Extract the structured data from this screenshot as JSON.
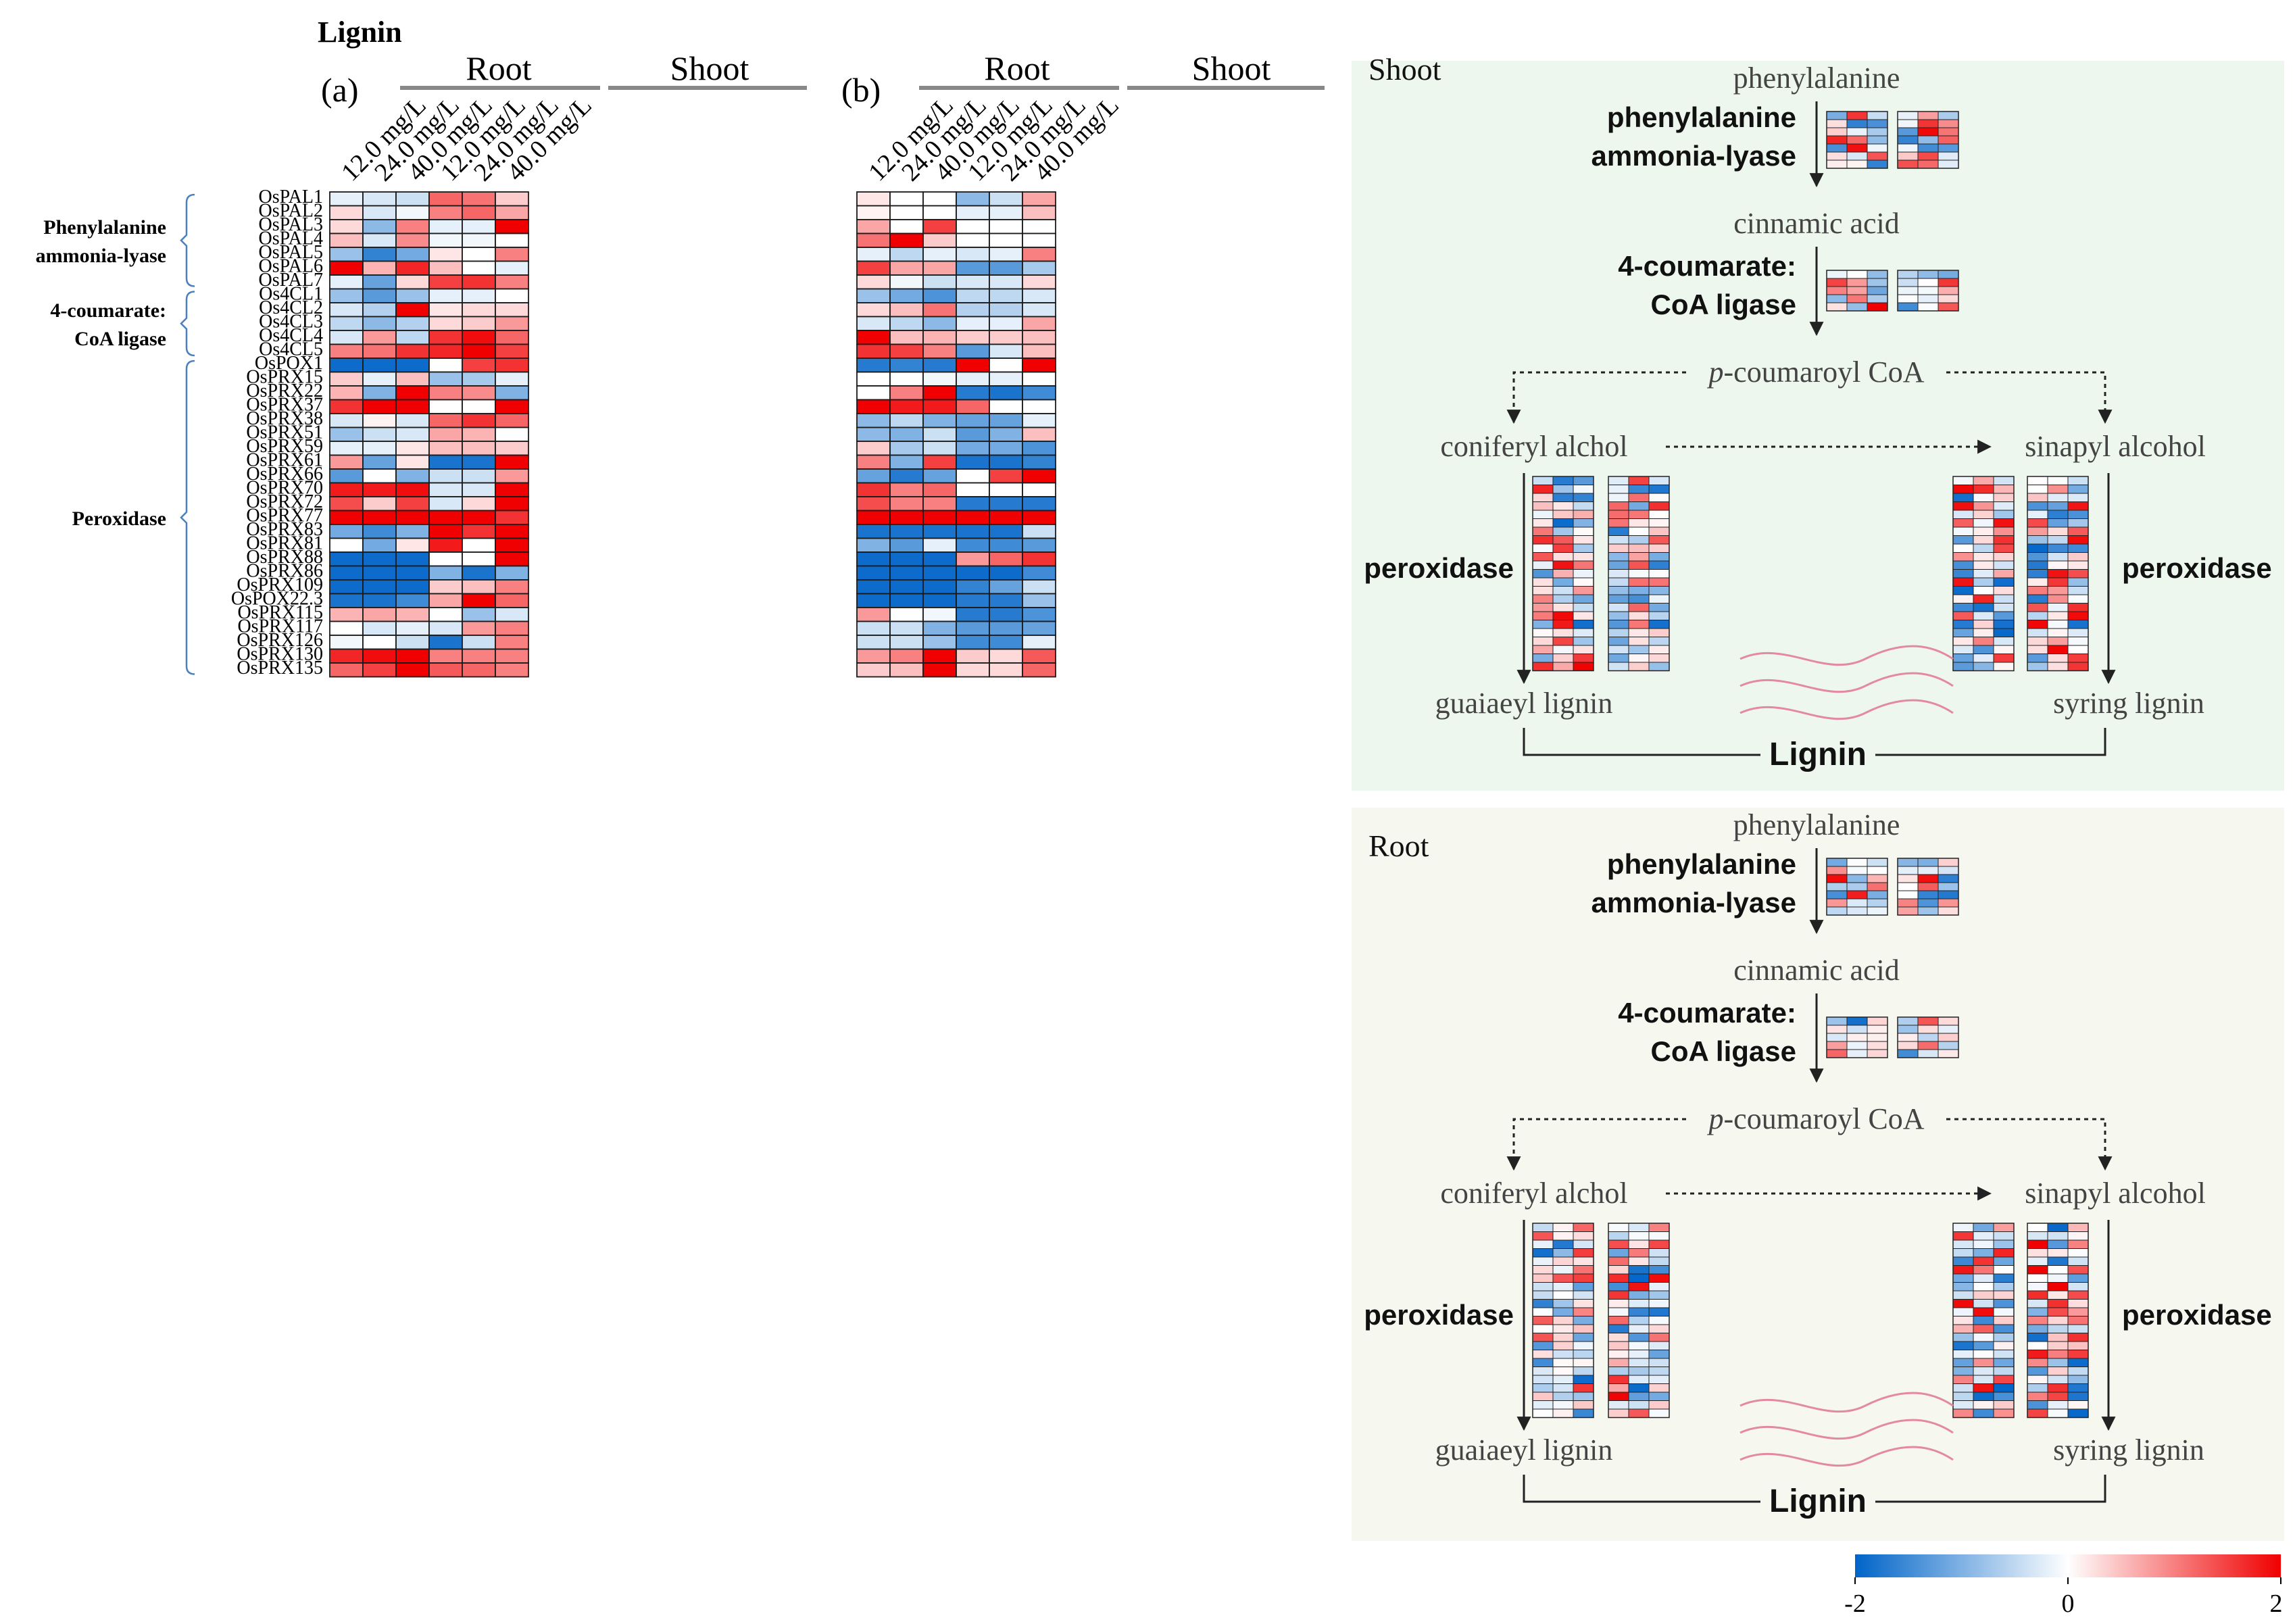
{
  "title": "Lignin",
  "colorbar": {
    "min_label": "-2",
    "mid_label": "0",
    "max_label": "2",
    "low_color": "#0064c8",
    "mid_color": "#ffffff",
    "high_color": "#f00000"
  },
  "chart_data": [
    {
      "type": "heatmap",
      "panel": "(a)",
      "groups": [
        "Root",
        "Shoot"
      ],
      "columns": [
        "12.0 mg/L",
        "24.0 mg/L",
        "40.0 mg/L",
        "12.0 mg/L",
        "24.0 mg/L",
        "40.0 mg/L"
      ],
      "rows": [
        "OsPAL1",
        "OsPAL2",
        "OsPAL3",
        "OsPAL4",
        "OsPAL5",
        "OsPAL6",
        "OsPAL7",
        "Os4CL1",
        "Os4CL2",
        "Os4CL3",
        "Os4CL4",
        "Os4CL5",
        "OsPOX1",
        "OsPRX15",
        "OsPRX22",
        "OsPRX37",
        "OsPRX38",
        "OsPRX51",
        "OsPRX59",
        "OsPRX61",
        "OsPRX66",
        "OsPRX70",
        "OsPRX72",
        "OsPRX77",
        "OsPRX83",
        "OsPRX81",
        "OsPRX88",
        "OsPRX86",
        "OsPRX109",
        "OsPOX22.3",
        "OsPRX115",
        "OsPRX117",
        "OsPRX126",
        "OsPRX130",
        "OsPRX135"
      ],
      "row_groups": [
        {
          "label": [
            "Phenylalanine",
            "ammonia-lyase"
          ],
          "from": 0,
          "to": 6
        },
        {
          "label": [
            "4-coumarate:",
            "CoA ligase"
          ],
          "from": 7,
          "to": 11
        },
        {
          "label": [
            "Peroxidase"
          ],
          "from": 12,
          "to": 34
        }
      ],
      "values": [
        [
          -0.2,
          -0.3,
          -0.4,
          1.2,
          1.1,
          0.4
        ],
        [
          0.3,
          -0.3,
          -0.1,
          1.0,
          1.2,
          0.7
        ],
        [
          0.3,
          -0.9,
          1.0,
          -0.2,
          -0.2,
          2.0
        ],
        [
          0.5,
          -0.3,
          0.9,
          -0.1,
          -0.1,
          0.0
        ],
        [
          -0.8,
          -1.6,
          -1.1,
          0.2,
          0.0,
          1.0
        ],
        [
          2.0,
          0.6,
          1.7,
          0.5,
          0.0,
          -0.2
        ],
        [
          -0.2,
          -1.2,
          0.3,
          1.5,
          1.6,
          1.0
        ],
        [
          -0.8,
          -1.3,
          -0.8,
          -0.2,
          -0.2,
          0.0
        ],
        [
          -0.3,
          -0.6,
          2.0,
          0.2,
          0.3,
          0.3
        ],
        [
          -0.5,
          -0.9,
          -0.6,
          0.3,
          0.4,
          0.8
        ],
        [
          -0.3,
          0.8,
          -0.5,
          1.6,
          1.9,
          1.2
        ],
        [
          1.0,
          1.1,
          1.6,
          1.7,
          2.0,
          1.5
        ],
        [
          -1.9,
          -1.9,
          -1.9,
          0.0,
          1.5,
          1.6
        ],
        [
          0.4,
          -0.2,
          0.5,
          -0.8,
          -0.7,
          -0.2
        ],
        [
          0.6,
          -1.0,
          2.0,
          1.0,
          0.9,
          -1.0
        ],
        [
          1.6,
          2.0,
          2.0,
          0.0,
          0.0,
          2.0
        ],
        [
          -0.3,
          0.1,
          -0.3,
          1.2,
          1.6,
          1.2
        ],
        [
          -0.8,
          -0.4,
          -0.3,
          0.7,
          0.6,
          0.0
        ],
        [
          -0.2,
          -0.2,
          0.2,
          0.5,
          0.5,
          0.4
        ],
        [
          0.8,
          -1.2,
          0.2,
          -1.8,
          -1.8,
          2.0
        ],
        [
          -1.3,
          0.0,
          -1.0,
          -0.4,
          -0.4,
          0.8
        ],
        [
          1.8,
          1.8,
          1.9,
          -0.3,
          -0.3,
          2.0
        ],
        [
          1.4,
          0.4,
          1.5,
          -0.3,
          0.3,
          2.0
        ],
        [
          2.0,
          2.0,
          2.0,
          2.0,
          2.0,
          1.6
        ],
        [
          -1.1,
          -1.5,
          -1.0,
          2.0,
          1.6,
          2.0
        ],
        [
          0.0,
          -1.1,
          0.2,
          1.8,
          0.0,
          2.0
        ],
        [
          -1.9,
          -1.9,
          -1.9,
          0.0,
          0.0,
          2.0
        ],
        [
          -1.9,
          -1.9,
          -1.9,
          -1.0,
          -1.8,
          -1.0
        ],
        [
          -1.9,
          -1.9,
          -1.9,
          0.4,
          0.5,
          1.0
        ],
        [
          -1.8,
          -1.8,
          -1.5,
          0.7,
          2.0,
          1.2
        ],
        [
          0.6,
          0.7,
          0.6,
          0.0,
          -0.8,
          -0.3
        ],
        [
          0.0,
          -0.3,
          -0.2,
          -0.3,
          0.8,
          1.0
        ],
        [
          -0.1,
          0.0,
          -0.4,
          -1.8,
          -0.4,
          1.0
        ],
        [
          1.7,
          1.9,
          2.0,
          1.0,
          1.0,
          1.0
        ],
        [
          1.2,
          1.5,
          2.0,
          1.3,
          1.2,
          1.0
        ]
      ]
    },
    {
      "type": "heatmap",
      "panel": "(b)",
      "groups": [
        "Root",
        "Shoot"
      ],
      "columns": [
        "12.0 mg/L",
        "24.0 mg/L",
        "40.0 mg/L",
        "12.0 mg/L",
        "24.0 mg/L",
        "40.0 mg/L"
      ],
      "rows": [
        "OsPAL1",
        "OsPAL2",
        "OsPAL3",
        "OsPAL4",
        "OsPAL5",
        "OsPAL6",
        "OsPAL7",
        "Os4CL1",
        "Os4CL2",
        "Os4CL3",
        "Os4CL4",
        "Os4CL5",
        "OsPOX1",
        "OsPRX15",
        "OsPRX22",
        "OsPRX37",
        "OsPRX38",
        "OsPRX51",
        "OsPRX59",
        "OsPRX61",
        "OsPRX66",
        "OsPRX70",
        "OsPRX72",
        "OsPRX77",
        "OsPRX83",
        "OsPRX81",
        "OsPRX88",
        "OsPRX86",
        "OsPRX109",
        "OsPOX22.3",
        "OsPRX115",
        "OsPRX117",
        "OsPRX126",
        "OsPRX130",
        "OsPRX135"
      ],
      "values": [
        [
          0.2,
          0.0,
          0.0,
          -0.9,
          -0.4,
          0.7
        ],
        [
          0.1,
          0.0,
          0.0,
          -0.2,
          -0.2,
          0.5
        ],
        [
          0.7,
          0.0,
          1.5,
          0.0,
          0.0,
          0.0
        ],
        [
          1.1,
          2.0,
          0.4,
          0.0,
          0.0,
          0.0
        ],
        [
          -0.2,
          -0.5,
          -0.2,
          -0.3,
          -0.2,
          1.0
        ],
        [
          1.5,
          0.7,
          0.7,
          -1.3,
          -1.3,
          -0.7
        ],
        [
          0.3,
          -0.1,
          -0.4,
          -0.3,
          -0.3,
          0.3
        ],
        [
          -0.8,
          -1.1,
          -1.4,
          -0.5,
          -0.5,
          -0.3
        ],
        [
          0.3,
          0.5,
          1.1,
          -0.6,
          -0.6,
          -0.3
        ],
        [
          -0.3,
          -0.5,
          -0.9,
          -0.2,
          -0.2,
          0.7
        ],
        [
          2.0,
          0.5,
          0.6,
          0.4,
          0.4,
          0.5
        ],
        [
          1.6,
          1.5,
          1.0,
          -1.3,
          -0.3,
          0.5
        ],
        [
          -1.7,
          -1.6,
          -1.7,
          2.0,
          0.0,
          2.0
        ],
        [
          0.0,
          0.0,
          -0.1,
          -0.2,
          -0.2,
          0.0
        ],
        [
          0.0,
          1.0,
          2.0,
          -1.7,
          -1.8,
          -1.5
        ],
        [
          2.0,
          1.8,
          1.8,
          1.2,
          0.0,
          0.0
        ],
        [
          -0.9,
          -0.5,
          -1.0,
          -1.2,
          -1.2,
          -0.2
        ],
        [
          -0.9,
          -1.0,
          -0.4,
          -1.3,
          -1.0,
          0.5
        ],
        [
          0.4,
          -0.7,
          -0.4,
          -1.1,
          -1.1,
          -1.4
        ],
        [
          1.0,
          -1.0,
          1.5,
          -1.8,
          -1.8,
          -1.6
        ],
        [
          -1.2,
          -1.7,
          -1.2,
          0.0,
          1.5,
          2.0
        ],
        [
          1.6,
          1.0,
          1.2,
          0.0,
          0.0,
          0.0
        ],
        [
          1.4,
          1.0,
          1.0,
          -1.7,
          -1.7,
          -1.7
        ],
        [
          2.0,
          2.0,
          2.0,
          2.0,
          2.0,
          2.0
        ],
        [
          -1.8,
          -1.8,
          -1.8,
          -1.8,
          -1.8,
          -0.4
        ],
        [
          -1.0,
          -1.3,
          -0.2,
          -1.5,
          -1.5,
          -1.3
        ],
        [
          -1.9,
          -1.9,
          -1.9,
          0.8,
          1.2,
          1.6
        ],
        [
          -1.9,
          -1.9,
          -1.9,
          -1.9,
          -1.9,
          -1.5
        ],
        [
          -1.9,
          -1.9,
          -1.9,
          -1.6,
          -1.2,
          -0.4
        ],
        [
          -1.9,
          -1.9,
          -1.9,
          -1.7,
          -1.7,
          -0.8
        ],
        [
          0.8,
          0.0,
          -0.1,
          -1.7,
          -1.7,
          -1.4
        ],
        [
          -0.4,
          -0.4,
          -1.0,
          -1.3,
          -1.3,
          -1.2
        ],
        [
          -0.4,
          -0.4,
          -0.8,
          -1.5,
          -1.5,
          -0.2
        ],
        [
          0.8,
          1.0,
          2.0,
          0.4,
          0.3,
          1.3
        ],
        [
          0.4,
          0.5,
          2.0,
          0.3,
          0.3,
          1.2
        ]
      ]
    }
  ],
  "pathways": [
    {
      "section_label": "Shoot",
      "bg_color": "#eef7ee",
      "phenylalanine": "phenylalanine",
      "pal_label": [
        "phenylalanine",
        "ammonia-lyase"
      ],
      "cinnamic": "cinnamic acid",
      "cl_label": [
        "4-coumarate:",
        "CoA ligase"
      ],
      "coumaroyl_prefix": "p",
      "coumaroyl_rest": "-coumaroyl CoA",
      "coniferyl": "coniferyl alchol",
      "sinapyl": "sinapyl alcohol",
      "peroxidase_left": "peroxidase",
      "peroxidase_right": "peroxidase",
      "guaiaeyl": "guaiaeyl lignin",
      "syring": "syring lignin",
      "lignin": "Lignin"
    },
    {
      "section_label": "Root",
      "bg_color": "#f6f8f0",
      "phenylalanine": "phenylalanine",
      "pal_label": [
        "phenylalanine",
        "ammonia-lyase"
      ],
      "cinnamic": "cinnamic acid",
      "cl_label": [
        "4-coumarate:",
        "CoA ligase"
      ],
      "coumaroyl_prefix": "p",
      "coumaroyl_rest": "-coumaroyl CoA",
      "coniferyl": "coniferyl alchol",
      "sinapyl": "sinapyl alcohol",
      "peroxidase_left": "peroxidase",
      "peroxidase_right": "peroxidase",
      "guaiaeyl": "guaiaeyl lignin",
      "syring": "syring lignin",
      "lignin": "Lignin"
    }
  ]
}
